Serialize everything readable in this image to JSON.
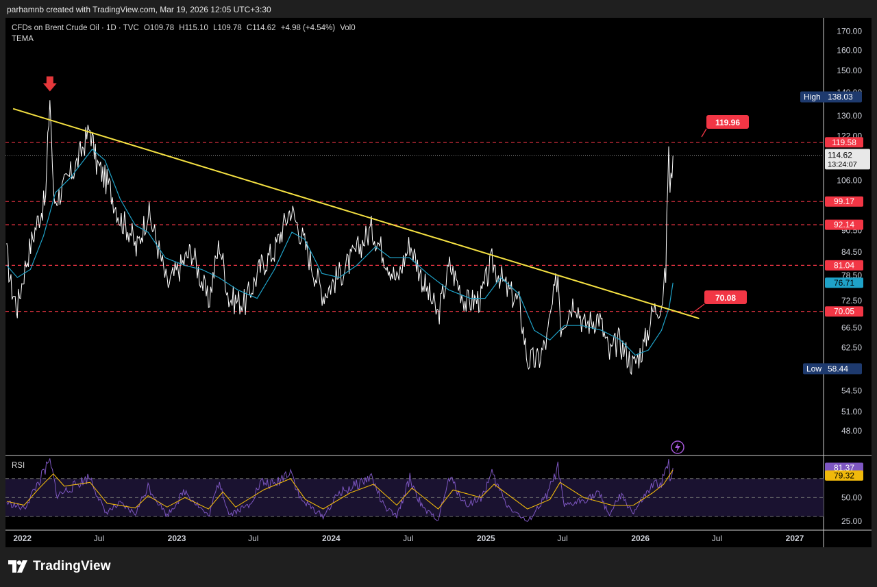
{
  "header": {
    "credit": "parhamnb created with TradingView.com, Mar 19, 2026 12:05 UTC+3:30"
  },
  "legend": {
    "symbol": "CFDs on Brent Crude Oil · 1D · TVC",
    "open": "O109.78",
    "high": "H115.10",
    "low": "L109.78",
    "close": "C114.62",
    "change": "+4.98 (+4.54%)",
    "volume": "Vol0",
    "indicator": "TEMA"
  },
  "rsi_panel": {
    "label": "RSI"
  },
  "footer": {
    "brand": "TradingView"
  },
  "colors": {
    "background": "#000000",
    "price": "#ffffff",
    "tema": "#1fa2c8",
    "trendline": "#f5e142",
    "level": "#f23645",
    "rsi": "#7e57c2",
    "rsi_ma": "#f0b90b"
  },
  "chart_data": [
    {
      "type": "line",
      "title": "CFDs on Brent Crude Oil · 1D · TVC",
      "y_axis_ticks": [
        "170.00",
        "160.00",
        "150.00",
        "140.00",
        "130.00",
        "122.00",
        "106.00",
        "99.00",
        "90.50",
        "84.50",
        "78.50",
        "72.50",
        "66.50",
        "62.50",
        "58.50",
        "54.50",
        "51.00",
        "48.00"
      ],
      "x_axis_ticks": [
        "2022",
        "Jul",
        "2023",
        "Jul",
        "2024",
        "Jul",
        "2025",
        "Jul",
        "2026",
        "Jul",
        "2027"
      ],
      "ylim": [
        45,
        175
      ],
      "y_scale": "log",
      "series": [
        {
          "points": [
            [
              "2021-11-25",
              84
            ],
            [
              "2021-12-05",
              76
            ],
            [
              "2021-12-20",
              71
            ],
            [
              "2022-01-10",
              82
            ],
            [
              "2022-02-05",
              93
            ],
            [
              "2022-02-25",
              100
            ],
            [
              "2022-03-07",
              138
            ],
            [
              "2022-03-16",
              99
            ],
            [
              "2022-04-10",
              104
            ],
            [
              "2022-05-10",
              112
            ],
            [
              "2022-06-10",
              125
            ],
            [
              "2022-06-25",
              112
            ],
            [
              "2022-07-25",
              104
            ],
            [
              "2022-08-20",
              94
            ],
            [
              "2022-09-15",
              90
            ],
            [
              "2022-09-27",
              85
            ],
            [
              "2022-10-25",
              96
            ],
            [
              "2022-11-20",
              85
            ],
            [
              "2022-12-09",
              76
            ],
            [
              "2023-01-05",
              80
            ],
            [
              "2023-02-05",
              85
            ],
            [
              "2023-03-17",
              72
            ],
            [
              "2023-04-12",
              87
            ],
            [
              "2023-05-04",
              73
            ],
            [
              "2023-06-12",
              72
            ],
            [
              "2023-07-20",
              81
            ],
            [
              "2023-08-20",
              85
            ],
            [
              "2023-09-27",
              97
            ],
            [
              "2023-10-20",
              90
            ],
            [
              "2023-11-20",
              80
            ],
            [
              "2023-12-13",
              74
            ],
            [
              "2024-01-15",
              78
            ],
            [
              "2024-02-15",
              82
            ],
            [
              "2024-04-05",
              91
            ],
            [
              "2024-05-05",
              84
            ],
            [
              "2024-06-04",
              77
            ],
            [
              "2024-07-05",
              87
            ],
            [
              "2024-08-05",
              77
            ],
            [
              "2024-09-10",
              69
            ],
            [
              "2024-10-07",
              81
            ],
            [
              "2024-11-15",
              72
            ],
            [
              "2024-12-20",
              73
            ],
            [
              "2025-01-15",
              82
            ],
            [
              "2025-02-20",
              75
            ],
            [
              "2025-03-20",
              72
            ],
            [
              "2025-04-09",
              60
            ],
            [
              "2025-05-05",
              60
            ],
            [
              "2025-05-25",
              64
            ],
            [
              "2025-06-20",
              79
            ],
            [
              "2025-06-27",
              67
            ],
            [
              "2025-07-30",
              73
            ],
            [
              "2025-08-20",
              67
            ],
            [
              "2025-09-25",
              69
            ],
            [
              "2025-10-20",
              61
            ],
            [
              "2025-11-10",
              64
            ],
            [
              "2025-12-16",
              59
            ],
            [
              "2026-01-10",
              63
            ],
            [
              "2026-01-30",
              70
            ],
            [
              "2026-02-20",
              72
            ],
            [
              "2026-03-02",
              79
            ],
            [
              "2026-03-09",
              119.6
            ],
            [
              "2026-03-12",
              101
            ],
            [
              "2026-03-19",
              114.62
            ]
          ]
        },
        {
          "name": "TEMA",
          "points": [
            [
              "2021-11-25",
              81
            ],
            [
              "2021-12-20",
              78
            ],
            [
              "2022-01-20",
              80
            ],
            [
              "2022-02-20",
              89
            ],
            [
              "2022-03-20",
              102
            ],
            [
              "2022-04-25",
              107
            ],
            [
              "2022-06-15",
              117
            ],
            [
              "2022-07-15",
              113
            ],
            [
              "2022-08-20",
              100
            ],
            [
              "2022-09-25",
              92
            ],
            [
              "2022-10-25",
              90
            ],
            [
              "2022-12-05",
              83
            ],
            [
              "2023-01-20",
              81
            ],
            [
              "2023-03-01",
              80
            ],
            [
              "2023-04-10",
              78
            ],
            [
              "2023-05-25",
              75
            ],
            [
              "2023-07-10",
              73
            ],
            [
              "2023-08-20",
              80
            ],
            [
              "2023-09-30",
              90
            ],
            [
              "2023-10-30",
              88
            ],
            [
              "2023-12-10",
              79
            ],
            [
              "2024-01-20",
              78
            ],
            [
              "2024-03-01",
              81
            ],
            [
              "2024-04-15",
              86
            ],
            [
              "2024-05-20",
              83
            ],
            [
              "2024-07-05",
              83
            ],
            [
              "2024-08-15",
              79
            ],
            [
              "2024-10-05",
              75
            ],
            [
              "2024-11-25",
              73
            ],
            [
              "2024-12-30",
              73
            ],
            [
              "2025-02-05",
              78
            ],
            [
              "2025-03-20",
              74
            ],
            [
              "2025-04-25",
              66
            ],
            [
              "2025-06-01",
              64
            ],
            [
              "2025-07-05",
              67
            ],
            [
              "2025-08-15",
              67
            ],
            [
              "2025-10-01",
              66
            ],
            [
              "2025-11-15",
              64
            ],
            [
              "2025-12-20",
              61
            ],
            [
              "2026-01-20",
              62
            ],
            [
              "2026-02-20",
              66
            ],
            [
              "2026-03-10",
              71
            ],
            [
              "2026-03-19",
              76.71
            ]
          ]
        }
      ],
      "trendline": {
        "from": [
          "2021-12-10",
          133
        ],
        "to": [
          "2026-05-20",
          68.5
        ]
      },
      "horizontal_levels": [
        119.58,
        99.17,
        92.14,
        81.04,
        70.05
      ],
      "labels": {
        "high": "High",
        "high_value": "138.03",
        "low": "Low",
        "low_value": "58.44",
        "last": "114.62",
        "countdown": "13:24:07",
        "tema": "76.71",
        "callout_high": "119.96",
        "callout_low": "70.08",
        "level_1": "119.58",
        "level_2": "99.17",
        "level_3": "92.14",
        "level_4": "81.04",
        "level_5": "70.05"
      }
    },
    {
      "type": "line",
      "title": "RSI",
      "ylim": [
        20,
        90
      ],
      "y_axis_ticks": [
        "50.00",
        "25.00"
      ],
      "bands": [
        70,
        50,
        30
      ],
      "series": [
        {
          "points": [
            [
              "2021-11-25",
              45
            ],
            [
              "2022-01-05",
              38
            ],
            [
              "2022-02-10",
              68
            ],
            [
              "2022-03-07",
              87
            ],
            [
              "2022-03-25",
              52
            ],
            [
              "2022-05-10",
              64
            ],
            [
              "2022-06-10",
              72
            ],
            [
              "2022-07-15",
              34
            ],
            [
              "2022-08-20",
              43
            ],
            [
              "2022-09-25",
              33
            ],
            [
              "2022-10-25",
              62
            ],
            [
              "2022-12-09",
              31
            ],
            [
              "2023-01-20",
              57
            ],
            [
              "2023-03-17",
              30
            ],
            [
              "2023-04-12",
              68
            ],
            [
              "2023-05-04",
              32
            ],
            [
              "2023-06-20",
              42
            ],
            [
              "2023-07-20",
              66
            ],
            [
              "2023-08-20",
              63
            ],
            [
              "2023-09-27",
              80
            ],
            [
              "2023-10-20",
              48
            ],
            [
              "2023-11-20",
              38
            ],
            [
              "2023-12-13",
              30
            ],
            [
              "2024-01-20",
              55
            ],
            [
              "2024-02-15",
              60
            ],
            [
              "2024-04-05",
              72
            ],
            [
              "2024-05-05",
              40
            ],
            [
              "2024-06-04",
              30
            ],
            [
              "2024-07-05",
              70
            ],
            [
              "2024-08-05",
              38
            ],
            [
              "2024-09-10",
              27
            ],
            [
              "2024-10-07",
              71
            ],
            [
              "2024-11-15",
              42
            ],
            [
              "2024-12-20",
              50
            ],
            [
              "2025-01-15",
              74
            ],
            [
              "2025-02-20",
              42
            ],
            [
              "2025-04-09",
              24
            ],
            [
              "2025-05-25",
              52
            ],
            [
              "2025-06-20",
              81
            ],
            [
              "2025-07-05",
              40
            ],
            [
              "2025-08-20",
              48
            ],
            [
              "2025-09-25",
              54
            ],
            [
              "2025-10-20",
              32
            ],
            [
              "2025-11-15",
              52
            ],
            [
              "2025-12-16",
              34
            ],
            [
              "2026-01-10",
              50
            ],
            [
              "2026-01-30",
              62
            ],
            [
              "2026-02-20",
              66
            ],
            [
              "2026-03-09",
              86
            ],
            [
              "2026-03-12",
              62
            ],
            [
              "2026-03-19",
              81.37
            ]
          ]
        },
        {
          "name": "RSI-based MA",
          "points": [
            [
              "2021-11-25",
              46
            ],
            [
              "2022-01-05",
              42
            ],
            [
              "2022-02-10",
              60
            ],
            [
              "2022-03-15",
              75
            ],
            [
              "2022-04-10",
              62
            ],
            [
              "2022-06-10",
              66
            ],
            [
              "2022-07-20",
              44
            ],
            [
              "2022-09-25",
              39
            ],
            [
              "2022-10-25",
              52
            ],
            [
              "2022-12-09",
              40
            ],
            [
              "2023-01-20",
              50
            ],
            [
              "2023-03-17",
              38
            ],
            [
              "2023-04-20",
              56
            ],
            [
              "2023-05-20",
              40
            ],
            [
              "2023-07-25",
              58
            ],
            [
              "2023-09-27",
              70
            ],
            [
              "2023-11-01",
              48
            ],
            [
              "2023-12-13",
              38
            ],
            [
              "2024-02-15",
              55
            ],
            [
              "2024-04-10",
              64
            ],
            [
              "2024-06-04",
              42
            ],
            [
              "2024-07-10",
              60
            ],
            [
              "2024-09-10",
              38
            ],
            [
              "2024-10-15",
              58
            ],
            [
              "2024-12-20",
              50
            ],
            [
              "2025-01-20",
              64
            ],
            [
              "2025-04-09",
              38
            ],
            [
              "2025-06-01",
              48
            ],
            [
              "2025-06-25",
              66
            ],
            [
              "2025-08-20",
              50
            ],
            [
              "2025-10-25",
              42
            ],
            [
              "2025-12-16",
              42
            ],
            [
              "2026-01-30",
              55
            ],
            [
              "2026-02-25",
              64
            ],
            [
              "2026-03-19",
              79.32
            ]
          ]
        }
      ],
      "labels": {
        "rsi_value": "81.37",
        "ma_value": "79.32"
      }
    }
  ]
}
